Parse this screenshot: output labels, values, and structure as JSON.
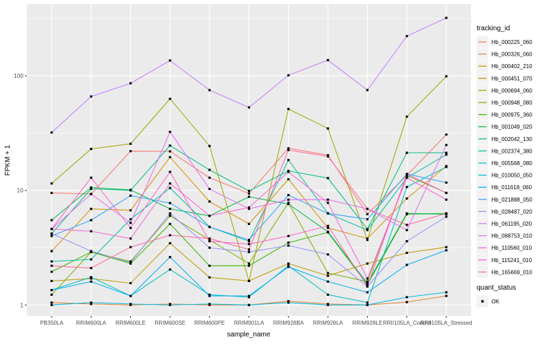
{
  "chart_data": {
    "type": "line",
    "title": "",
    "xlabel": "sample_name",
    "ylabel": "FPKM + 1",
    "y_scale": "log10",
    "y_ticks": [
      1,
      10,
      100
    ],
    "ylim": [
      0.8,
      430
    ],
    "grid": true,
    "point_marker": "black-square",
    "categories": [
      "PB350LA",
      "RRIM600LA",
      "RRIM600LE",
      "RRIM600SE",
      "RRIM600PE",
      "RRIM901LA",
      "RRIM928BA",
      "RRIM928LA",
      "RRIM928LE",
      "RRII105LA_Control",
      "RRII105LA_Stressed"
    ],
    "legend": {
      "title": "tracking_id",
      "position": "right"
    },
    "quant_legend": {
      "title": "quant_status",
      "items": [
        {
          "label": "OK",
          "marker": "black-square"
        }
      ]
    },
    "series": [
      {
        "name": "Hb_000225_060",
        "color": "#F8766D",
        "values": [
          9.5,
          9.3,
          22.0,
          21.9,
          12.9,
          9.4,
          23.3,
          20.3,
          6.2,
          13.5,
          30.7
        ]
      },
      {
        "name": "Hb_000326_060",
        "color": "#EA8331",
        "values": [
          1.05,
          1.02,
          1.0,
          1.02,
          1.0,
          1.0,
          1.08,
          1.02,
          1.0,
          1.06,
          1.2
        ]
      },
      {
        "name": "Hb_000402_210",
        "color": "#D89000",
        "values": [
          2.95,
          6.9,
          6.7,
          19.5,
          8.0,
          5.1,
          12.5,
          4.7,
          3.8,
          8.5,
          16.3
        ]
      },
      {
        "name": "Hb_000451_070",
        "color": "#C09B00",
        "values": [
          1.62,
          1.7,
          1.55,
          3.46,
          1.74,
          1.62,
          2.3,
          1.8,
          2.3,
          2.85,
          3.2
        ]
      },
      {
        "name": "Hb_000694_060",
        "color": "#A3A500",
        "values": [
          11.5,
          23.0,
          25.5,
          63.0,
          24.4,
          1.62,
          51.3,
          34.7,
          3.7,
          44.0,
          99.0
        ]
      },
      {
        "name": "Hb_000948_080",
        "color": "#7CAE00",
        "values": [
          1.23,
          2.9,
          2.4,
          6.0,
          3.7,
          2.3,
          7.8,
          1.9,
          1.6,
          13.5,
          9.5
        ]
      },
      {
        "name": "Hb_000975_360",
        "color": "#39B600",
        "values": [
          1.95,
          2.9,
          2.3,
          5.1,
          2.2,
          2.2,
          3.5,
          4.3,
          1.5,
          6.2,
          6.3
        ]
      },
      {
        "name": "Hb_001049_020",
        "color": "#00BB4E",
        "values": [
          5.5,
          10.6,
          10.1,
          6.9,
          6.0,
          8.8,
          7.6,
          4.35,
          1.55,
          6.3,
          6.2
        ]
      },
      {
        "name": "Hb_002042_130",
        "color": "#00BF7D",
        "values": [
          4.2,
          10.3,
          10.0,
          24.6,
          15.1,
          9.9,
          14.8,
          12.8,
          4.6,
          21.3,
          21.3
        ]
      },
      {
        "name": "Hb_002374_380",
        "color": "#00C1A3",
        "values": [
          2.4,
          2.5,
          5.6,
          10.5,
          4.8,
          3.6,
          18.4,
          6.3,
          4.5,
          12.9,
          20.5
        ]
      },
      {
        "name": "Hb_005568_080",
        "color": "#00BFC4",
        "values": [
          1.35,
          1.75,
          1.2,
          2.04,
          1.23,
          1.17,
          2.2,
          1.23,
          1.05,
          10.7,
          16.0
        ]
      },
      {
        "name": "Hb_010050_050",
        "color": "#00BAE0",
        "values": [
          1.0,
          1.05,
          1.02,
          1.0,
          1.02,
          1.0,
          1.05,
          1.0,
          1.0,
          1.17,
          1.29
        ]
      },
      {
        "name": "Hb_011618_060",
        "color": "#00B0F6",
        "values": [
          1.35,
          1.6,
          1.2,
          2.62,
          1.2,
          1.2,
          2.15,
          1.6,
          1.29,
          2.24,
          3.0
        ]
      },
      {
        "name": "Hb_021888_050",
        "color": "#35A2FF",
        "values": [
          4.0,
          5.5,
          9.0,
          7.75,
          4.8,
          3.7,
          9.1,
          6.3,
          5.6,
          13.9,
          11.7
        ]
      },
      {
        "name": "Hb_028487_020",
        "color": "#9590FF",
        "values": [
          4.2,
          2.95,
          2.35,
          6.3,
          3.16,
          2.9,
          3.3,
          2.76,
          1.45,
          3.6,
          5.9
        ]
      },
      {
        "name": "Hb_061195_020",
        "color": "#C77CFF",
        "values": [
          32,
          66,
          86,
          136,
          75,
          53,
          101,
          137,
          75,
          222,
          320
        ]
      },
      {
        "name": "Hb_088753_010",
        "color": "#E76BF3",
        "values": [
          4.6,
          9.3,
          5.2,
          32.4,
          10.3,
          6.9,
          8.3,
          8.3,
          6.9,
          4.5,
          24.9
        ]
      },
      {
        "name": "Hb_110560_010",
        "color": "#FA62DB",
        "values": [
          4.6,
          4.4,
          3.8,
          11.5,
          6.0,
          7.1,
          14.5,
          7.8,
          1.7,
          12.9,
          8.3
        ]
      },
      {
        "name": "Hb_115241_010",
        "color": "#FF61CC",
        "values": [
          4.6,
          12.9,
          4.7,
          14.5,
          3.6,
          3.4,
          4.0,
          4.9,
          1.45,
          13.9,
          9.5
        ]
      },
      {
        "name": "Hb_165669_010",
        "color": "#FF67A4",
        "values": [
          2.2,
          2.1,
          3.2,
          4.06,
          3.8,
          3.05,
          22.5,
          19.8,
          6.9,
          5.0,
          6.3
        ]
      }
    ],
    "style": {
      "background": "#FFFFFF",
      "panel_bg": "#EBEBEB",
      "grid_color": "#FFFFFF",
      "axis_text_color": "#4D4D4D",
      "tick_color": "#333333",
      "point_color": "#000000",
      "legend_key_bg": "#F2F2F2"
    }
  }
}
